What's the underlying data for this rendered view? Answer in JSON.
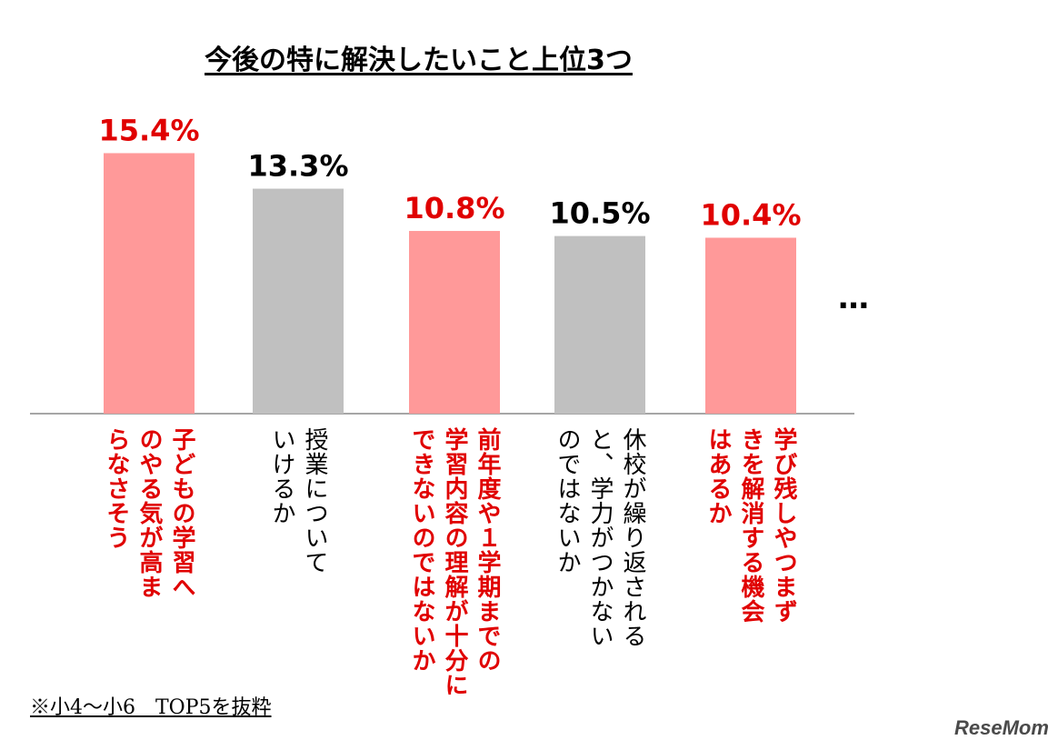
{
  "chart_data": {
    "type": "bar",
    "title": "今後の特に解決したいこと上位3つ",
    "categories": [
      "子どものやる気が高まらなさそう",
      "授業についていけるか",
      "前年度や１学期までの学習内容の理解が十分にできないのではないか",
      "休校が繰り返されると、学力がつかないのではないか",
      "学び残しやつまずきを解消する機会はあるか"
    ],
    "category_lines": [
      [
        "子どもの学習へ",
        "のやる気が高ま",
        "らなさそう"
      ],
      [
        "授業について",
        "いけるか"
      ],
      [
        "前年度や１学期までの",
        "学習内容の理解が十分に",
        "できないのではないか"
      ],
      [
        "休校が繰り返される",
        "と、学力がつかない",
        "のではないか"
      ],
      [
        "学び残しやつまず",
        "きを解消する機会",
        "はあるか"
      ]
    ],
    "values": [
      15.4,
      13.3,
      10.8,
      10.5,
      10.4
    ],
    "value_labels": [
      "15.4%",
      "13.3%",
      "10.8%",
      "10.5%",
      "10.4%"
    ],
    "highlight": [
      true,
      false,
      true,
      false,
      true
    ],
    "ylim": [
      0,
      16.5
    ],
    "grid": false,
    "legend": "none",
    "xlabel": "",
    "ylabel": ""
  },
  "colors": {
    "highlight_bar": "#ff9999",
    "normal_bar": "#c0c0c0",
    "highlight_text": "#e00000",
    "normal_text": "#000000",
    "baseline": "#a6a6a6"
  },
  "ellipsis": "…",
  "note": "※小4～小6　TOP5を抜粋",
  "logo": "ReseMom"
}
